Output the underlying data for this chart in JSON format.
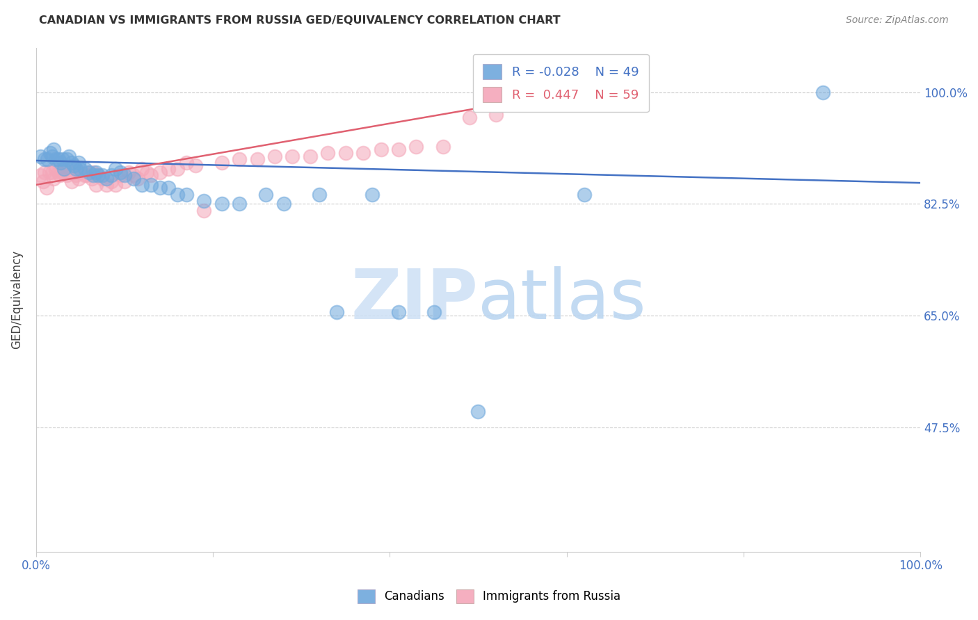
{
  "title": "CANADIAN VS IMMIGRANTS FROM RUSSIA GED/EQUIVALENCY CORRELATION CHART",
  "source": "Source: ZipAtlas.com",
  "ylabel": "GED/Equivalency",
  "ytick_labels": [
    "100.0%",
    "82.5%",
    "65.0%",
    "47.5%"
  ],
  "ytick_values": [
    1.0,
    0.825,
    0.65,
    0.475
  ],
  "xlim": [
    0.0,
    1.0
  ],
  "ylim": [
    0.28,
    1.07
  ],
  "legend_r_canadian": "-0.028",
  "legend_n_canadian": "49",
  "legend_r_russia": "0.447",
  "legend_n_russia": "59",
  "color_canadian": "#6fa8dc",
  "color_russia": "#f4a7b9",
  "line_color_canadian": "#4472c4",
  "line_color_russia": "#e06070",
  "canadian_x": [
    0.005,
    0.01,
    0.013,
    0.016,
    0.018,
    0.02,
    0.022,
    0.025,
    0.028,
    0.03,
    0.032,
    0.035,
    0.037,
    0.04,
    0.043,
    0.045,
    0.048,
    0.05,
    0.055,
    0.06,
    0.065,
    0.068,
    0.07,
    0.075,
    0.08,
    0.085,
    0.09,
    0.095,
    0.1,
    0.11,
    0.12,
    0.13,
    0.14,
    0.15,
    0.16,
    0.17,
    0.19,
    0.21,
    0.23,
    0.26,
    0.28,
    0.32,
    0.34,
    0.38,
    0.41,
    0.45,
    0.5,
    0.62,
    0.89
  ],
  "canadian_y": [
    0.9,
    0.895,
    0.895,
    0.905,
    0.9,
    0.91,
    0.895,
    0.895,
    0.89,
    0.895,
    0.88,
    0.895,
    0.9,
    0.89,
    0.885,
    0.88,
    0.89,
    0.88,
    0.88,
    0.875,
    0.87,
    0.875,
    0.87,
    0.87,
    0.865,
    0.87,
    0.88,
    0.875,
    0.87,
    0.865,
    0.855,
    0.855,
    0.85,
    0.85,
    0.84,
    0.84,
    0.83,
    0.825,
    0.825,
    0.84,
    0.825,
    0.84,
    0.655,
    0.84,
    0.655,
    0.655,
    0.5,
    0.84,
    1.0
  ],
  "russia_x": [
    0.005,
    0.008,
    0.01,
    0.012,
    0.015,
    0.018,
    0.02,
    0.022,
    0.025,
    0.027,
    0.03,
    0.032,
    0.035,
    0.038,
    0.04,
    0.042,
    0.045,
    0.048,
    0.05,
    0.055,
    0.058,
    0.06,
    0.063,
    0.065,
    0.068,
    0.07,
    0.075,
    0.08,
    0.085,
    0.09,
    0.095,
    0.1,
    0.105,
    0.11,
    0.115,
    0.12,
    0.125,
    0.13,
    0.14,
    0.15,
    0.16,
    0.17,
    0.18,
    0.19,
    0.21,
    0.23,
    0.25,
    0.27,
    0.29,
    0.31,
    0.33,
    0.35,
    0.37,
    0.39,
    0.41,
    0.43,
    0.46,
    0.49,
    0.52
  ],
  "russia_y": [
    0.87,
    0.86,
    0.875,
    0.85,
    0.875,
    0.875,
    0.865,
    0.88,
    0.875,
    0.87,
    0.875,
    0.875,
    0.87,
    0.875,
    0.86,
    0.875,
    0.87,
    0.865,
    0.875,
    0.87,
    0.87,
    0.875,
    0.865,
    0.875,
    0.855,
    0.87,
    0.865,
    0.855,
    0.86,
    0.855,
    0.87,
    0.86,
    0.875,
    0.87,
    0.865,
    0.88,
    0.875,
    0.87,
    0.875,
    0.88,
    0.88,
    0.89,
    0.885,
    0.815,
    0.89,
    0.895,
    0.895,
    0.9,
    0.9,
    0.9,
    0.905,
    0.905,
    0.905,
    0.91,
    0.91,
    0.915,
    0.915,
    0.96,
    0.965
  ],
  "canada_line_x0": 0.0,
  "canada_line_x1": 1.0,
  "canada_line_y0": 0.893,
  "canada_line_y1": 0.858,
  "russia_line_x0": 0.0,
  "russia_line_x1": 0.52,
  "russia_line_y0": 0.855,
  "russia_line_y1": 0.98
}
